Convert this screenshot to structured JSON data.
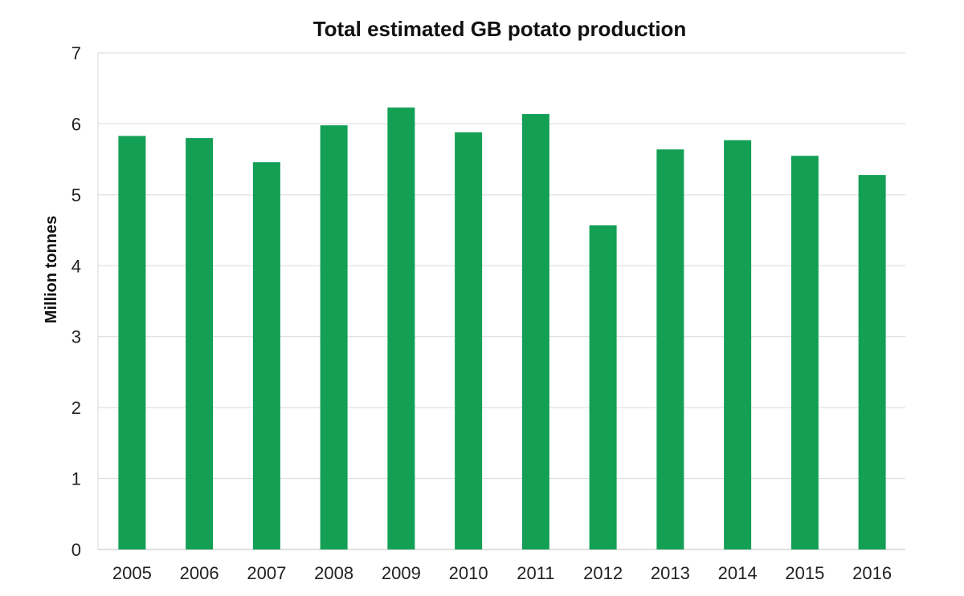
{
  "chart_data": {
    "type": "bar",
    "title": "Total estimated GB potato production",
    "xlabel": "",
    "ylabel": "Million tonnes",
    "categories": [
      "2005",
      "2006",
      "2007",
      "2008",
      "2009",
      "2010",
      "2011",
      "2012",
      "2013",
      "2014",
      "2015",
      "2016"
    ],
    "values": [
      5.83,
      5.8,
      5.46,
      5.98,
      6.23,
      5.88,
      6.14,
      4.57,
      5.64,
      5.77,
      5.55,
      5.28
    ],
    "ylim": [
      0,
      7
    ],
    "yticks": [
      "0",
      "1",
      "2",
      "3",
      "4",
      "5",
      "6",
      "7"
    ],
    "grid": true,
    "legend": "none",
    "bar_color": "#13a055"
  }
}
